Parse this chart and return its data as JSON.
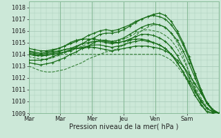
{
  "bg_color": "#cce8d8",
  "plot_bg": "#cce8d8",
  "grid_color": "#aaccbb",
  "line_color": "#1a6e1a",
  "title": "Pression niveau de la mer( hPa )",
  "ylim": [
    1009,
    1018.5
  ],
  "yticks": [
    1009,
    1010,
    1011,
    1012,
    1013,
    1014,
    1015,
    1016,
    1017,
    1018
  ],
  "xtick_labels": [
    "Mar",
    "Mar",
    "Mer",
    "Jeu",
    "Ven",
    "Sam"
  ],
  "xtick_positions": [
    0,
    24,
    48,
    72,
    96,
    120
  ],
  "xmax": 144,
  "series": [
    {
      "y": [
        1014.2,
        1014.1,
        1014.0,
        1014.1,
        1014.2,
        1014.3,
        1014.4,
        1014.5,
        1014.5,
        1014.5,
        1014.6,
        1014.6,
        1014.5,
        1014.4,
        1014.3,
        1014.4,
        1014.5,
        1014.6,
        1014.7,
        1014.7,
        1014.7,
        1014.6,
        1014.5,
        1014.3,
        1014.0,
        1013.5,
        1013.0,
        1012.3,
        1011.5,
        1010.7,
        1009.9,
        1009.3,
        1009.0
      ],
      "style": "solid",
      "marker": true
    },
    {
      "y": [
        1014.0,
        1013.9,
        1013.8,
        1013.9,
        1014.0,
        1014.0,
        1014.0,
        1014.0,
        1014.0,
        1014.0,
        1014.0,
        1014.0,
        1014.0,
        1014.0,
        1014.0,
        1014.0,
        1014.0,
        1014.0,
        1014.0,
        1014.0,
        1014.0,
        1014.0,
        1014.0,
        1013.8,
        1013.5,
        1013.0,
        1012.3,
        1011.5,
        1010.5,
        1009.8,
        1009.2,
        1009.0,
        1009.0
      ],
      "style": "dotted",
      "marker": false
    },
    {
      "y": [
        1014.3,
        1014.2,
        1014.1,
        1014.2,
        1014.3,
        1014.5,
        1014.7,
        1015.0,
        1015.2,
        1015.3,
        1015.3,
        1015.3,
        1015.2,
        1015.1,
        1015.0,
        1015.0,
        1015.1,
        1015.2,
        1015.3,
        1015.3,
        1015.2,
        1015.0,
        1014.8,
        1014.5,
        1014.0,
        1013.3,
        1012.5,
        1011.7,
        1010.8,
        1010.0,
        1009.4,
        1009.1,
        1009.0
      ],
      "style": "solid",
      "marker": true
    },
    {
      "y": [
        1013.5,
        1013.5,
        1013.5,
        1013.6,
        1013.8,
        1014.0,
        1014.2,
        1014.3,
        1014.5,
        1014.6,
        1014.7,
        1014.8,
        1014.8,
        1014.7,
        1014.6,
        1014.7,
        1014.8,
        1015.0,
        1015.1,
        1015.2,
        1015.1,
        1015.0,
        1014.8,
        1014.5,
        1014.0,
        1013.3,
        1012.5,
        1011.5,
        1010.5,
        1009.7,
        1009.1,
        1009.0,
        1009.0
      ],
      "style": "solid",
      "marker": true
    },
    {
      "y": [
        1014.1,
        1014.0,
        1013.9,
        1014.0,
        1014.1,
        1014.2,
        1014.4,
        1014.5,
        1014.7,
        1014.9,
        1015.0,
        1015.1,
        1015.1,
        1015.0,
        1014.9,
        1015.0,
        1015.1,
        1015.3,
        1015.5,
        1015.7,
        1015.7,
        1015.6,
        1015.4,
        1015.1,
        1014.6,
        1013.9,
        1013.0,
        1012.0,
        1011.0,
        1010.1,
        1009.4,
        1009.1,
        1009.0
      ],
      "style": "solid",
      "marker": true
    },
    {
      "y": [
        1013.8,
        1013.7,
        1013.6,
        1013.6,
        1013.7,
        1013.9,
        1014.1,
        1014.3,
        1014.5,
        1014.7,
        1014.9,
        1015.1,
        1015.2,
        1015.1,
        1015.0,
        1015.1,
        1015.3,
        1015.5,
        1015.8,
        1016.0,
        1016.1,
        1016.0,
        1015.9,
        1015.6,
        1015.2,
        1014.5,
        1013.6,
        1012.5,
        1011.3,
        1010.3,
        1009.5,
        1009.1,
        1009.0
      ],
      "style": "dotted",
      "marker": false
    },
    {
      "y": [
        1013.3,
        1013.2,
        1013.1,
        1013.2,
        1013.3,
        1013.5,
        1013.7,
        1014.0,
        1014.2,
        1014.5,
        1014.7,
        1015.0,
        1015.2,
        1015.2,
        1015.1,
        1015.2,
        1015.4,
        1015.7,
        1016.0,
        1016.3,
        1016.5,
        1016.6,
        1016.5,
        1016.3,
        1015.8,
        1015.2,
        1014.3,
        1013.2,
        1012.0,
        1010.8,
        1009.8,
        1009.2,
        1009.0
      ],
      "style": "solid",
      "marker": true
    },
    {
      "y": [
        1014.5,
        1014.4,
        1014.3,
        1014.3,
        1014.4,
        1014.5,
        1014.7,
        1014.9,
        1015.1,
        1015.3,
        1015.6,
        1015.8,
        1016.0,
        1016.1,
        1016.0,
        1016.1,
        1016.3,
        1016.5,
        1016.8,
        1017.0,
        1017.2,
        1017.3,
        1017.2,
        1017.0,
        1016.5,
        1015.8,
        1014.8,
        1013.6,
        1012.3,
        1011.0,
        1009.9,
        1009.3,
        1009.0
      ],
      "style": "solid",
      "marker": true
    },
    {
      "y": [
        1014.0,
        1013.9,
        1013.9,
        1013.9,
        1014.0,
        1014.1,
        1014.2,
        1014.4,
        1014.6,
        1014.9,
        1015.2,
        1015.4,
        1015.7,
        1015.8,
        1015.8,
        1015.9,
        1016.1,
        1016.4,
        1016.7,
        1017.0,
        1017.2,
        1017.4,
        1017.5,
        1017.3,
        1016.8,
        1016.0,
        1015.0,
        1013.8,
        1012.4,
        1011.0,
        1009.9,
        1009.3,
        1009.0
      ],
      "style": "solid",
      "marker": true
    },
    {
      "y": [
        1013.0,
        1012.8,
        1012.6,
        1012.5,
        1012.5,
        1012.6,
        1012.7,
        1012.9,
        1013.1,
        1013.3,
        1013.6,
        1013.8,
        1014.0,
        1014.2,
        1014.3,
        1014.5,
        1014.8,
        1015.2,
        1015.6,
        1016.0,
        1016.3,
        1016.5,
        1016.5,
        1016.3,
        1015.8,
        1015.0,
        1013.9,
        1012.5,
        1011.1,
        1009.8,
        1009.1,
        1009.0,
        1009.0
      ],
      "style": "dotted",
      "marker": false
    }
  ],
  "n_points": 33,
  "title_fontsize": 7,
  "tick_fontsize": 6
}
